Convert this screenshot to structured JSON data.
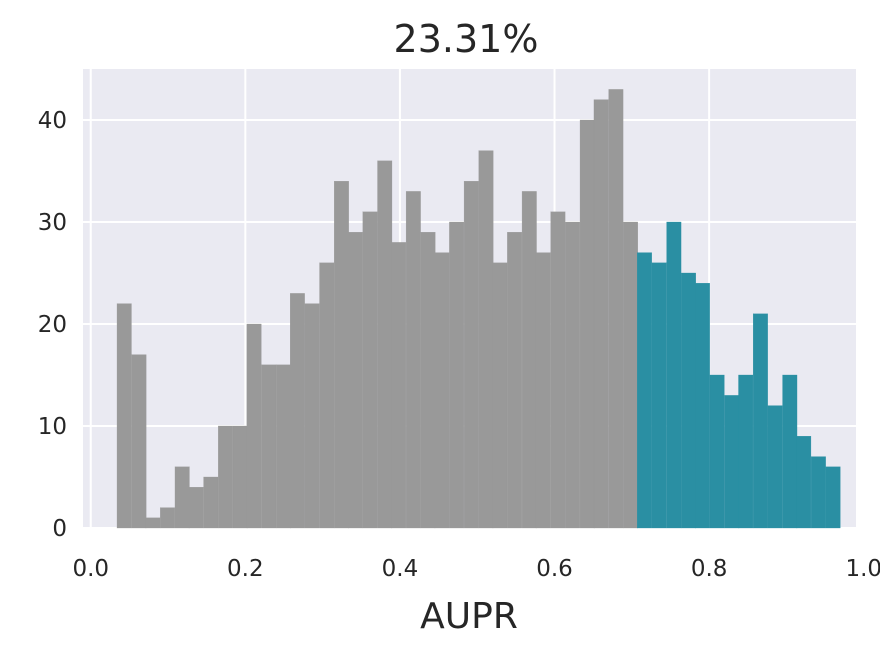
{
  "chart_data": {
    "type": "bar",
    "title": "23.31%",
    "xlabel": "AUPR",
    "ylabel": "",
    "xlim": [
      -0.01,
      0.99
    ],
    "ylim": [
      0,
      45
    ],
    "grid": true,
    "bin_width": 0.0187,
    "x_ticks": [
      "0.0",
      "0.2",
      "0.4",
      "0.6",
      "0.8",
      "1.0"
    ],
    "y_ticks": [
      "0",
      "10",
      "20",
      "30",
      "40"
    ],
    "colors": {
      "below": "#999999",
      "above": "#2a8fa3",
      "background": "#eaeaf2",
      "grid": "#ffffff"
    },
    "series": [
      {
        "bin_starts": [
          0.034,
          0.053,
          0.071,
          0.09,
          0.109,
          0.127,
          0.146,
          0.165,
          0.184,
          0.202,
          0.221,
          0.24,
          0.258,
          0.277,
          0.296,
          0.315,
          0.333,
          0.352,
          0.371,
          0.389,
          0.408,
          0.427,
          0.445,
          0.464,
          0.483,
          0.502,
          0.52,
          0.539,
          0.558,
          0.576,
          0.595,
          0.614,
          0.633,
          0.651,
          0.67,
          0.689
        ],
        "values": [
          22,
          17,
          1,
          2,
          6,
          4,
          5,
          10,
          10,
          20,
          16,
          16,
          23,
          22,
          26,
          34,
          29,
          31,
          36,
          28,
          33,
          29,
          27,
          30,
          34,
          37,
          26,
          29,
          33,
          27,
          31,
          30,
          40,
          42,
          43,
          30
        ]
      },
      {
        "bin_starts": [
          0.707,
          0.726,
          0.745,
          0.764,
          0.782,
          0.801,
          0.82,
          0.838,
          0.857,
          0.876,
          0.895,
          0.913,
          0.932,
          0.951
        ],
        "values": [
          27,
          26,
          30,
          25,
          24,
          15,
          13,
          15,
          21,
          12,
          15,
          9,
          7,
          6
        ]
      }
    ]
  }
}
